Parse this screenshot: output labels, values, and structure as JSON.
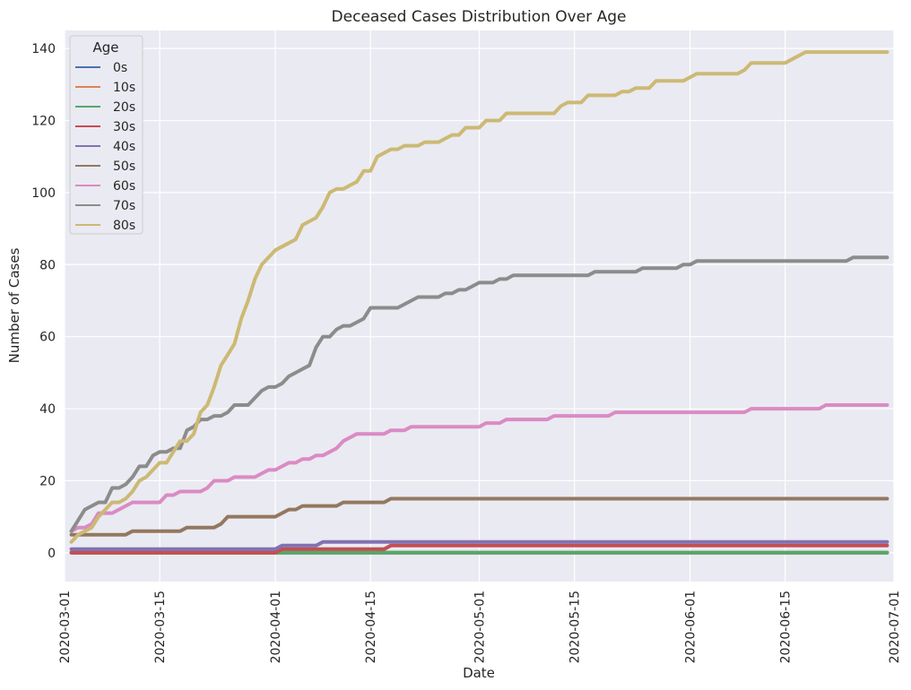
{
  "chart_data": {
    "type": "line",
    "title": "Deceased Cases Distribution Over Age",
    "xlabel": "Date",
    "ylabel": "Number of Cases",
    "xlim": [
      "2020-03-01",
      "2020-07-01"
    ],
    "ylim": [
      -8,
      145
    ],
    "x_ticks": [
      "2020-03-01",
      "2020-03-15",
      "2020-04-01",
      "2020-04-15",
      "2020-05-01",
      "2020-05-15",
      "2020-06-01",
      "2020-06-15",
      "2020-07-01"
    ],
    "y_ticks": [
      0,
      20,
      40,
      60,
      80,
      100,
      120,
      140
    ],
    "legend_title": "Age",
    "legend_position": "top-left",
    "grid": true,
    "background": "#eaeaf2",
    "series": [
      {
        "name": "0s",
        "color": "#4c72b0",
        "points": [
          [
            "2020-03-02",
            0
          ],
          [
            "2020-06-30",
            0
          ]
        ]
      },
      {
        "name": "10s",
        "color": "#dd8452",
        "points": [
          [
            "2020-03-02",
            0
          ],
          [
            "2020-06-30",
            0
          ]
        ]
      },
      {
        "name": "20s",
        "color": "#55a868",
        "points": [
          [
            "2020-03-02",
            0
          ],
          [
            "2020-06-30",
            0
          ]
        ]
      },
      {
        "name": "30s",
        "color": "#c44e52",
        "points": [
          [
            "2020-03-02",
            0
          ],
          [
            "2020-04-01",
            0
          ],
          [
            "2020-04-02",
            1
          ],
          [
            "2020-04-17",
            1
          ],
          [
            "2020-04-18",
            2
          ],
          [
            "2020-06-30",
            2
          ]
        ]
      },
      {
        "name": "40s",
        "color": "#8172b3",
        "points": [
          [
            "2020-03-02",
            1
          ],
          [
            "2020-04-01",
            1
          ],
          [
            "2020-04-02",
            2
          ],
          [
            "2020-04-07",
            2
          ],
          [
            "2020-04-08",
            3
          ],
          [
            "2020-06-30",
            3
          ]
        ]
      },
      {
        "name": "50s",
        "color": "#937860",
        "points": [
          [
            "2020-03-02",
            5
          ],
          [
            "2020-03-10",
            5
          ],
          [
            "2020-03-11",
            6
          ],
          [
            "2020-03-18",
            6
          ],
          [
            "2020-03-19",
            7
          ],
          [
            "2020-03-23",
            7
          ],
          [
            "2020-03-24",
            8
          ],
          [
            "2020-03-25",
            10
          ],
          [
            "2020-04-01",
            10
          ],
          [
            "2020-04-03",
            12
          ],
          [
            "2020-04-04",
            12
          ],
          [
            "2020-04-05",
            13
          ],
          [
            "2020-04-10",
            13
          ],
          [
            "2020-04-11",
            14
          ],
          [
            "2020-04-17",
            14
          ],
          [
            "2020-04-18",
            15
          ],
          [
            "2020-06-30",
            15
          ]
        ]
      },
      {
        "name": "60s",
        "color": "#da8bc3",
        "points": [
          [
            "2020-03-02",
            6
          ],
          [
            "2020-03-03",
            7
          ],
          [
            "2020-03-04",
            7
          ],
          [
            "2020-03-05",
            8
          ],
          [
            "2020-03-06",
            11
          ],
          [
            "2020-03-08",
            11
          ],
          [
            "2020-03-10",
            13
          ],
          [
            "2020-03-11",
            14
          ],
          [
            "2020-03-15",
            14
          ],
          [
            "2020-03-16",
            16
          ],
          [
            "2020-03-17",
            16
          ],
          [
            "2020-03-18",
            17
          ],
          [
            "2020-03-21",
            17
          ],
          [
            "2020-03-22",
            18
          ],
          [
            "2020-03-23",
            20
          ],
          [
            "2020-03-25",
            20
          ],
          [
            "2020-03-26",
            21
          ],
          [
            "2020-03-29",
            21
          ],
          [
            "2020-03-31",
            23
          ],
          [
            "2020-04-01",
            23
          ],
          [
            "2020-04-03",
            25
          ],
          [
            "2020-04-04",
            25
          ],
          [
            "2020-04-05",
            26
          ],
          [
            "2020-04-06",
            26
          ],
          [
            "2020-04-07",
            27
          ],
          [
            "2020-04-08",
            27
          ],
          [
            "2020-04-10",
            29
          ],
          [
            "2020-04-11",
            31
          ],
          [
            "2020-04-13",
            33
          ],
          [
            "2020-04-17",
            33
          ],
          [
            "2020-04-18",
            34
          ],
          [
            "2020-04-20",
            34
          ],
          [
            "2020-04-21",
            35
          ],
          [
            "2020-05-01",
            35
          ],
          [
            "2020-05-02",
            36
          ],
          [
            "2020-05-04",
            36
          ],
          [
            "2020-05-05",
            37
          ],
          [
            "2020-05-11",
            37
          ],
          [
            "2020-05-12",
            38
          ],
          [
            "2020-05-20",
            38
          ],
          [
            "2020-05-21",
            39
          ],
          [
            "2020-06-09",
            39
          ],
          [
            "2020-06-10",
            40
          ],
          [
            "2020-06-20",
            40
          ],
          [
            "2020-06-21",
            41
          ],
          [
            "2020-06-30",
            41
          ]
        ]
      },
      {
        "name": "70s",
        "color": "#8c8c8c",
        "points": [
          [
            "2020-03-02",
            6
          ],
          [
            "2020-03-04",
            12
          ],
          [
            "2020-03-06",
            14
          ],
          [
            "2020-03-07",
            14
          ],
          [
            "2020-03-08",
            18
          ],
          [
            "2020-03-09",
            18
          ],
          [
            "2020-03-10",
            19
          ],
          [
            "2020-03-11",
            21
          ],
          [
            "2020-03-12",
            24
          ],
          [
            "2020-03-13",
            24
          ],
          [
            "2020-03-14",
            27
          ],
          [
            "2020-03-15",
            28
          ],
          [
            "2020-03-16",
            28
          ],
          [
            "2020-03-17",
            29
          ],
          [
            "2020-03-18",
            29
          ],
          [
            "2020-03-19",
            34
          ],
          [
            "2020-03-20",
            35
          ],
          [
            "2020-03-21",
            37
          ],
          [
            "2020-03-22",
            37
          ],
          [
            "2020-03-23",
            38
          ],
          [
            "2020-03-24",
            38
          ],
          [
            "2020-03-25",
            39
          ],
          [
            "2020-03-26",
            41
          ],
          [
            "2020-03-28",
            41
          ],
          [
            "2020-03-30",
            45
          ],
          [
            "2020-03-31",
            46
          ],
          [
            "2020-04-01",
            46
          ],
          [
            "2020-04-02",
            47
          ],
          [
            "2020-04-03",
            49
          ],
          [
            "2020-04-04",
            50
          ],
          [
            "2020-04-05",
            51
          ],
          [
            "2020-04-06",
            52
          ],
          [
            "2020-04-07",
            57
          ],
          [
            "2020-04-08",
            60
          ],
          [
            "2020-04-09",
            60
          ],
          [
            "2020-04-10",
            62
          ],
          [
            "2020-04-11",
            63
          ],
          [
            "2020-04-12",
            63
          ],
          [
            "2020-04-13",
            64
          ],
          [
            "2020-04-14",
            65
          ],
          [
            "2020-04-15",
            68
          ],
          [
            "2020-04-19",
            68
          ],
          [
            "2020-04-22",
            71
          ],
          [
            "2020-04-25",
            71
          ],
          [
            "2020-04-26",
            72
          ],
          [
            "2020-04-27",
            72
          ],
          [
            "2020-04-28",
            73
          ],
          [
            "2020-04-29",
            73
          ],
          [
            "2020-04-30",
            74
          ],
          [
            "2020-05-01",
            75
          ],
          [
            "2020-05-03",
            75
          ],
          [
            "2020-05-04",
            76
          ],
          [
            "2020-05-05",
            76
          ],
          [
            "2020-05-06",
            77
          ],
          [
            "2020-05-17",
            77
          ],
          [
            "2020-05-18",
            78
          ],
          [
            "2020-05-24",
            78
          ],
          [
            "2020-05-25",
            79
          ],
          [
            "2020-05-30",
            79
          ],
          [
            "2020-05-31",
            80
          ],
          [
            "2020-06-01",
            80
          ],
          [
            "2020-06-02",
            81
          ],
          [
            "2020-06-24",
            81
          ],
          [
            "2020-06-25",
            82
          ],
          [
            "2020-06-30",
            82
          ]
        ]
      },
      {
        "name": "80s",
        "color": "#ccb974",
        "points": [
          [
            "2020-03-02",
            3
          ],
          [
            "2020-03-03",
            5
          ],
          [
            "2020-03-04",
            6
          ],
          [
            "2020-03-05",
            7
          ],
          [
            "2020-03-06",
            10
          ],
          [
            "2020-03-08",
            14
          ],
          [
            "2020-03-09",
            14
          ],
          [
            "2020-03-10",
            15
          ],
          [
            "2020-03-11",
            17
          ],
          [
            "2020-03-12",
            20
          ],
          [
            "2020-03-13",
            21
          ],
          [
            "2020-03-14",
            23
          ],
          [
            "2020-03-15",
            25
          ],
          [
            "2020-03-16",
            25
          ],
          [
            "2020-03-17",
            28
          ],
          [
            "2020-03-18",
            31
          ],
          [
            "2020-03-19",
            31
          ],
          [
            "2020-03-20",
            33
          ],
          [
            "2020-03-21",
            39
          ],
          [
            "2020-03-22",
            41
          ],
          [
            "2020-03-23",
            46
          ],
          [
            "2020-03-24",
            52
          ],
          [
            "2020-03-25",
            55
          ],
          [
            "2020-03-26",
            58
          ],
          [
            "2020-03-27",
            65
          ],
          [
            "2020-03-28",
            70
          ],
          [
            "2020-03-29",
            76
          ],
          [
            "2020-03-30",
            80
          ],
          [
            "2020-03-31",
            82
          ],
          [
            "2020-04-01",
            84
          ],
          [
            "2020-04-02",
            85
          ],
          [
            "2020-04-03",
            86
          ],
          [
            "2020-04-04",
            87
          ],
          [
            "2020-04-05",
            91
          ],
          [
            "2020-04-06",
            92
          ],
          [
            "2020-04-07",
            93
          ],
          [
            "2020-04-08",
            96
          ],
          [
            "2020-04-09",
            100
          ],
          [
            "2020-04-10",
            101
          ],
          [
            "2020-04-11",
            101
          ],
          [
            "2020-04-12",
            102
          ],
          [
            "2020-04-13",
            103
          ],
          [
            "2020-04-14",
            106
          ],
          [
            "2020-04-15",
            106
          ],
          [
            "2020-04-16",
            110
          ],
          [
            "2020-04-17",
            111
          ],
          [
            "2020-04-18",
            112
          ],
          [
            "2020-04-19",
            112
          ],
          [
            "2020-04-20",
            113
          ],
          [
            "2020-04-22",
            113
          ],
          [
            "2020-04-23",
            114
          ],
          [
            "2020-04-25",
            114
          ],
          [
            "2020-04-26",
            115
          ],
          [
            "2020-04-27",
            116
          ],
          [
            "2020-04-28",
            116
          ],
          [
            "2020-04-29",
            118
          ],
          [
            "2020-05-01",
            118
          ],
          [
            "2020-05-02",
            120
          ],
          [
            "2020-05-04",
            120
          ],
          [
            "2020-05-05",
            122
          ],
          [
            "2020-05-12",
            122
          ],
          [
            "2020-05-13",
            124
          ],
          [
            "2020-05-14",
            125
          ],
          [
            "2020-05-16",
            125
          ],
          [
            "2020-05-17",
            127
          ],
          [
            "2020-05-21",
            127
          ],
          [
            "2020-05-22",
            128
          ],
          [
            "2020-05-23",
            128
          ],
          [
            "2020-05-24",
            129
          ],
          [
            "2020-05-26",
            129
          ],
          [
            "2020-05-27",
            131
          ],
          [
            "2020-05-31",
            131
          ],
          [
            "2020-06-01",
            132
          ],
          [
            "2020-06-02",
            133
          ],
          [
            "2020-06-08",
            133
          ],
          [
            "2020-06-09",
            134
          ],
          [
            "2020-06-10",
            136
          ],
          [
            "2020-06-15",
            136
          ],
          [
            "2020-06-16",
            137
          ],
          [
            "2020-06-17",
            138
          ],
          [
            "2020-06-18",
            139
          ],
          [
            "2020-06-30",
            139
          ]
        ]
      }
    ]
  }
}
